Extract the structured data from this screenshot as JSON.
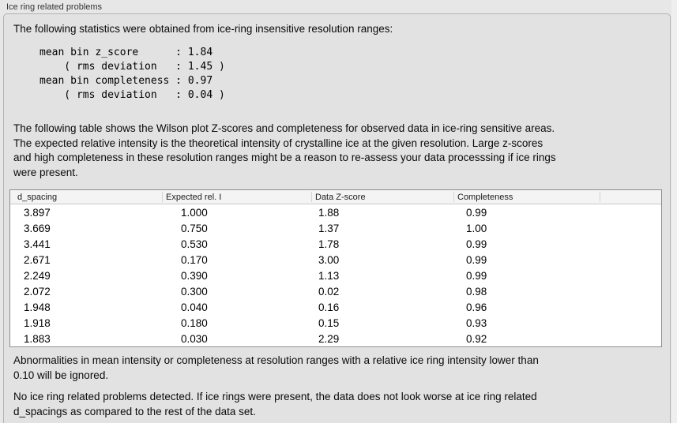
{
  "group_box": {
    "title": "Ice ring related problems"
  },
  "intro": "The following statistics were obtained from ice-ring insensitive resolution ranges:",
  "stats_block": {
    "lines": [
      "mean bin z_score      : 1.84",
      "    ( rms deviation   : 1.45 )",
      "mean bin completeness : 0.97",
      "    ( rms deviation   : 0.04 )"
    ]
  },
  "description": {
    "lines": [
      "The following table shows the Wilson plot Z-scores and completeness for observed data in ice-ring sensitive areas.",
      "The expected relative intensity is the theoretical intensity of crystalline ice at the given resolution. Large z-scores",
      "and high completeness in these resolution ranges might be a reason to re-assess your data processsing if ice rings",
      "were present."
    ]
  },
  "table": {
    "columns": [
      "d_spacing",
      "Expected rel. I",
      "Data Z-score",
      "Completeness",
      ""
    ],
    "rows": [
      [
        "3.897",
        "1.000",
        "1.88",
        "0.99"
      ],
      [
        "3.669",
        "0.750",
        "1.37",
        "1.00"
      ],
      [
        "3.441",
        "0.530",
        "1.78",
        "0.99"
      ],
      [
        "2.671",
        "0.170",
        "3.00",
        "0.99"
      ],
      [
        "2.249",
        "0.390",
        "1.13",
        "0.99"
      ],
      [
        "2.072",
        "0.300",
        "0.02",
        "0.98"
      ],
      [
        "1.948",
        "0.040",
        "0.16",
        "0.96"
      ],
      [
        "1.918",
        "0.180",
        "0.15",
        "0.93"
      ],
      [
        "1.883",
        "0.030",
        "2.29",
        "0.92"
      ]
    ]
  },
  "note": {
    "lines": [
      "Abnormalities in mean intensity or completeness at resolution ranges with a relative ice ring intensity lower than",
      "0.10 will be ignored."
    ]
  },
  "conclusion": {
    "lines": [
      "No ice ring related problems detected. If ice rings were present, the data does not look worse at ice ring related",
      "d_spacings as compared to the rest of the data set."
    ]
  }
}
